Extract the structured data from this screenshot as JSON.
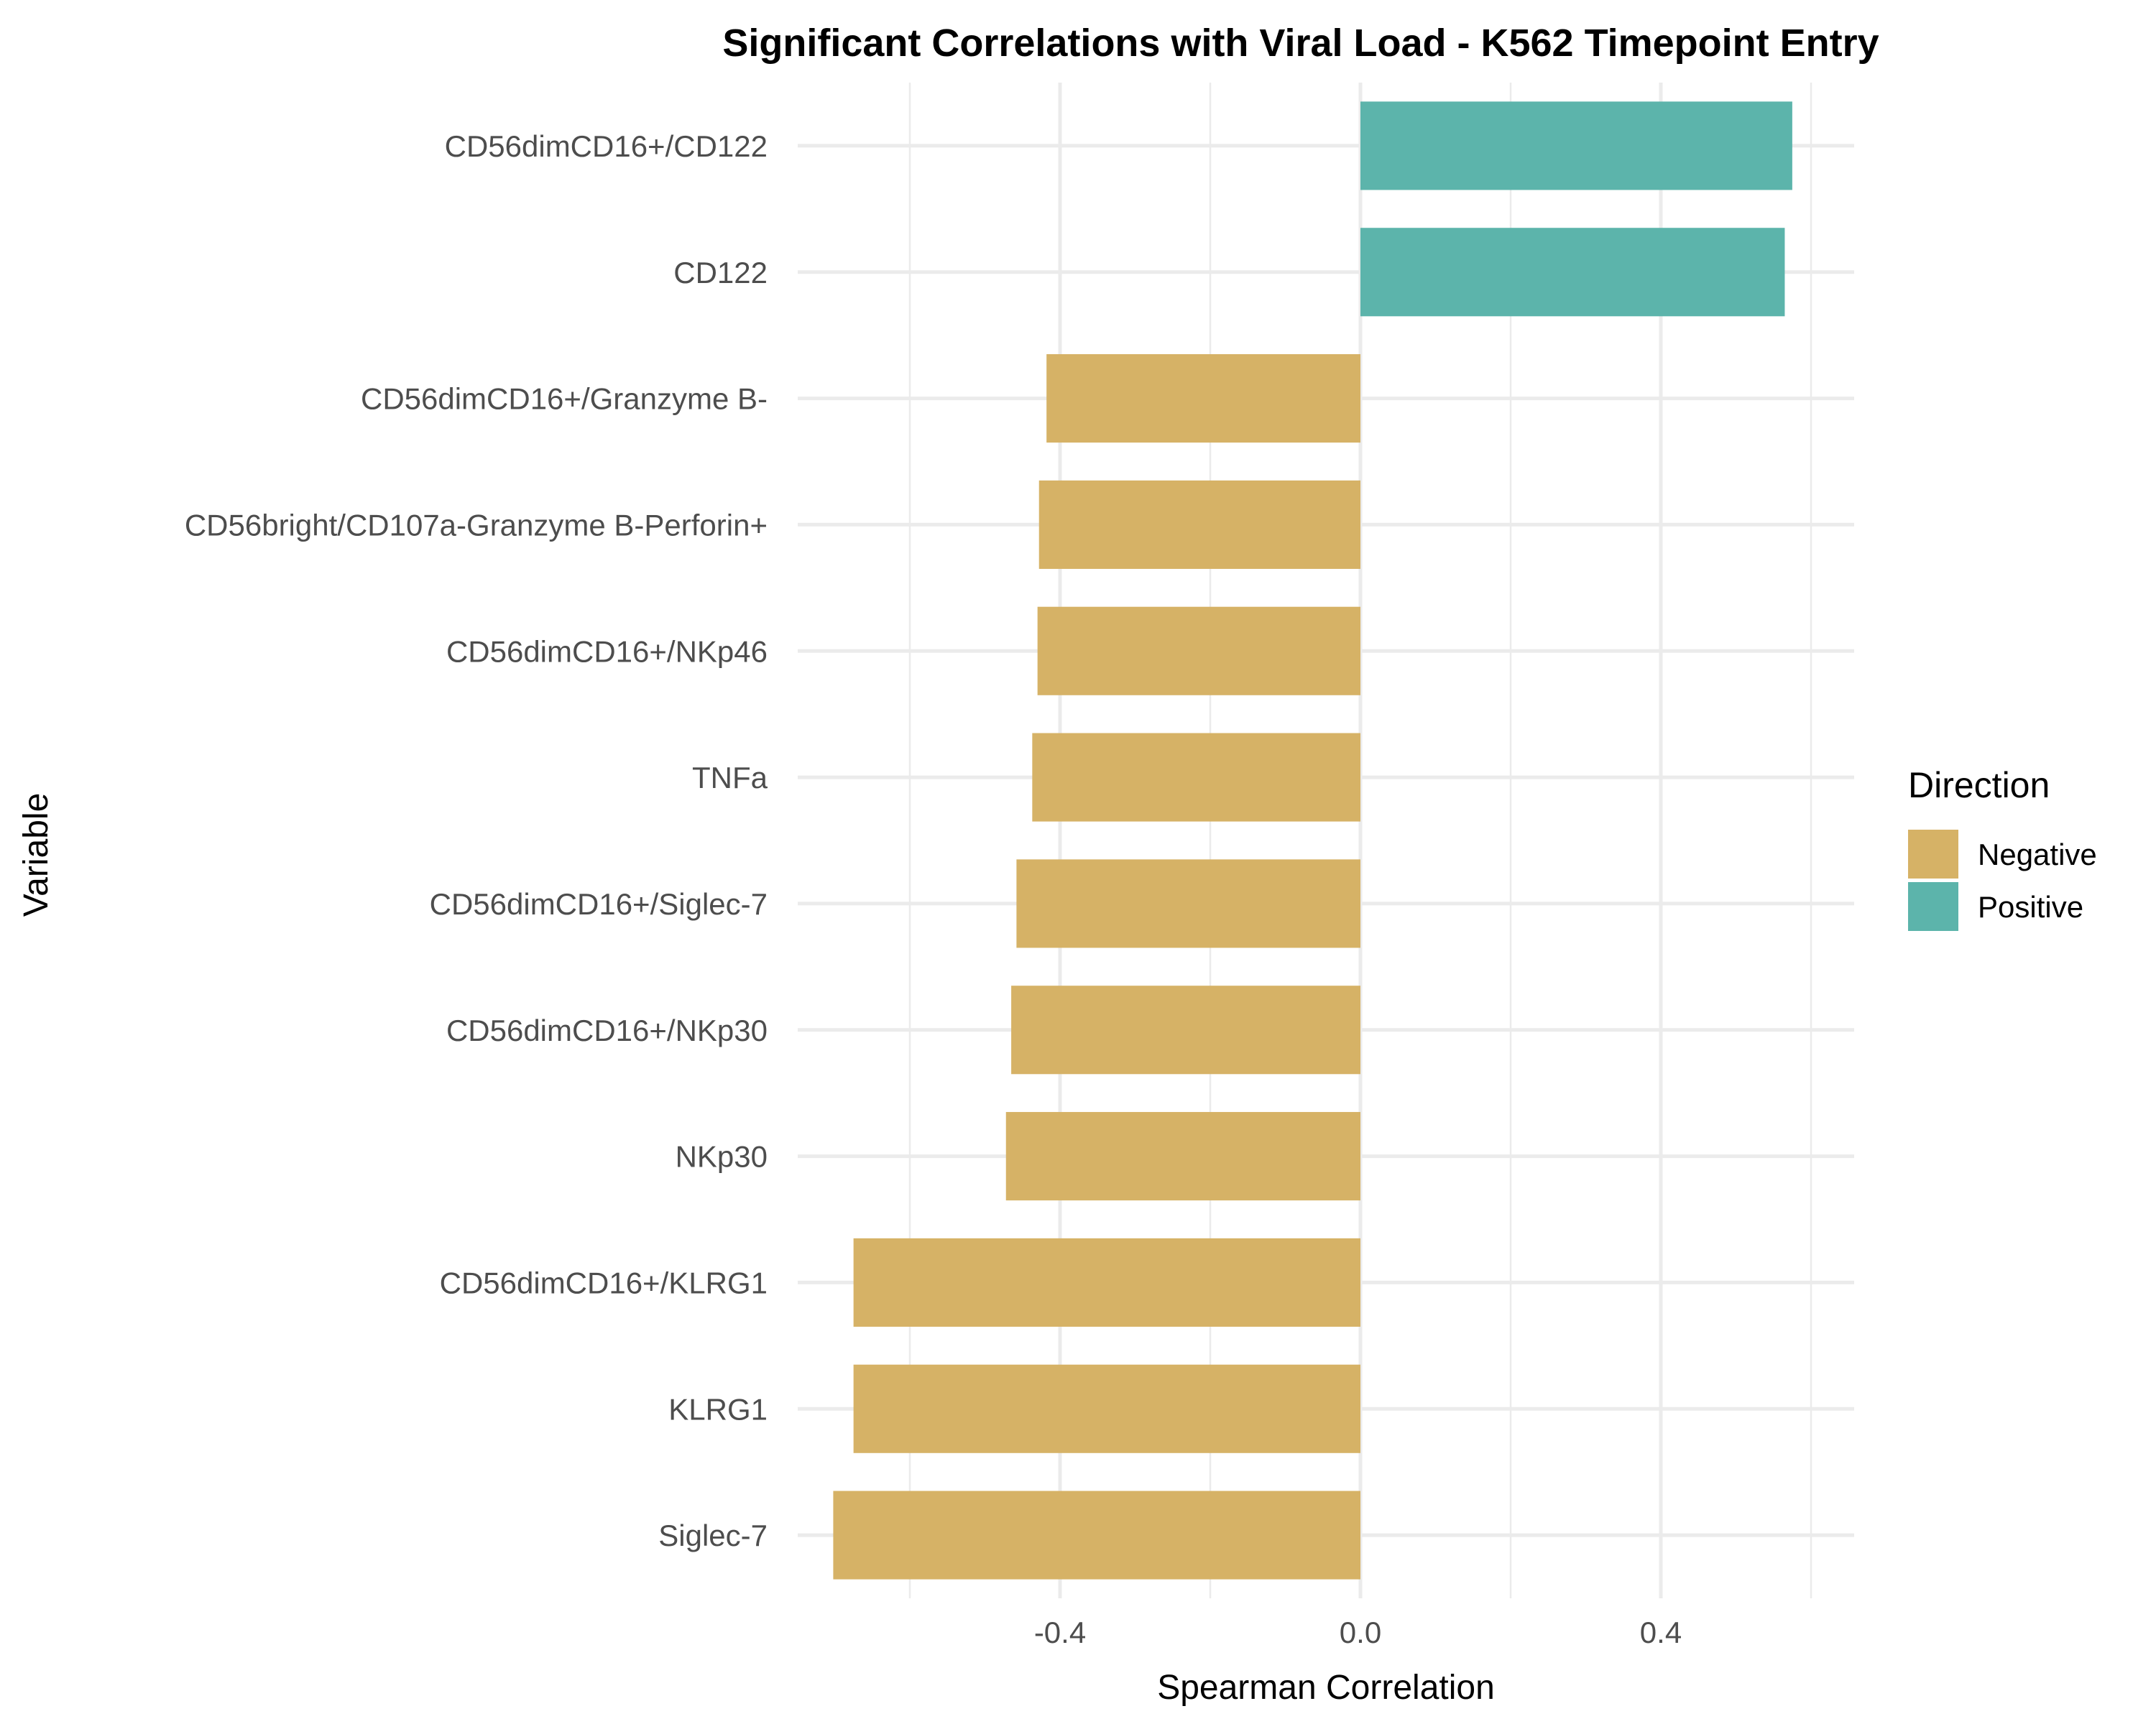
{
  "chart_data": {
    "type": "bar",
    "orientation": "horizontal",
    "title": "Significant Correlations with Viral Load - K562 Timepoint Entry",
    "xlabel": "Spearman Correlation",
    "ylabel": "Variable",
    "xlim": [
      -0.75,
      0.64
    ],
    "xticks": [
      -0.4,
      0.0,
      0.4
    ],
    "xtick_labels": [
      "-0.4",
      "0.0",
      "0.4"
    ],
    "grid": true,
    "legend": {
      "title": "Direction",
      "placement": "right",
      "entries": [
        {
          "label": "Negative",
          "color": "#D6B266"
        },
        {
          "label": "Positive",
          "color": "#5CB4AB"
        }
      ]
    },
    "bars": [
      {
        "label": "CD56dimCD16+/CD122",
        "value": 0.575,
        "direction": "Positive"
      },
      {
        "label": "CD122",
        "value": 0.565,
        "direction": "Positive"
      },
      {
        "label": "CD56dimCD16+/Granzyme B-",
        "value": -0.418,
        "direction": "Negative"
      },
      {
        "label": "CD56bright/CD107a-Granzyme B-Perforin+",
        "value": -0.428,
        "direction": "Negative"
      },
      {
        "label": "CD56dimCD16+/NKp46",
        "value": -0.43,
        "direction": "Negative"
      },
      {
        "label": "TNFa",
        "value": -0.437,
        "direction": "Negative"
      },
      {
        "label": "CD56dimCD16+/Siglec-7",
        "value": -0.458,
        "direction": "Negative"
      },
      {
        "label": "CD56dimCD16+/NKp30",
        "value": -0.465,
        "direction": "Negative"
      },
      {
        "label": "NKp30",
        "value": -0.472,
        "direction": "Negative"
      },
      {
        "label": "CD56dimCD16+/KLRG1",
        "value": -0.675,
        "direction": "Negative"
      },
      {
        "label": "KLRG1",
        "value": -0.675,
        "direction": "Negative"
      },
      {
        "label": "Siglec-7",
        "value": -0.702,
        "direction": "Negative"
      }
    ]
  }
}
